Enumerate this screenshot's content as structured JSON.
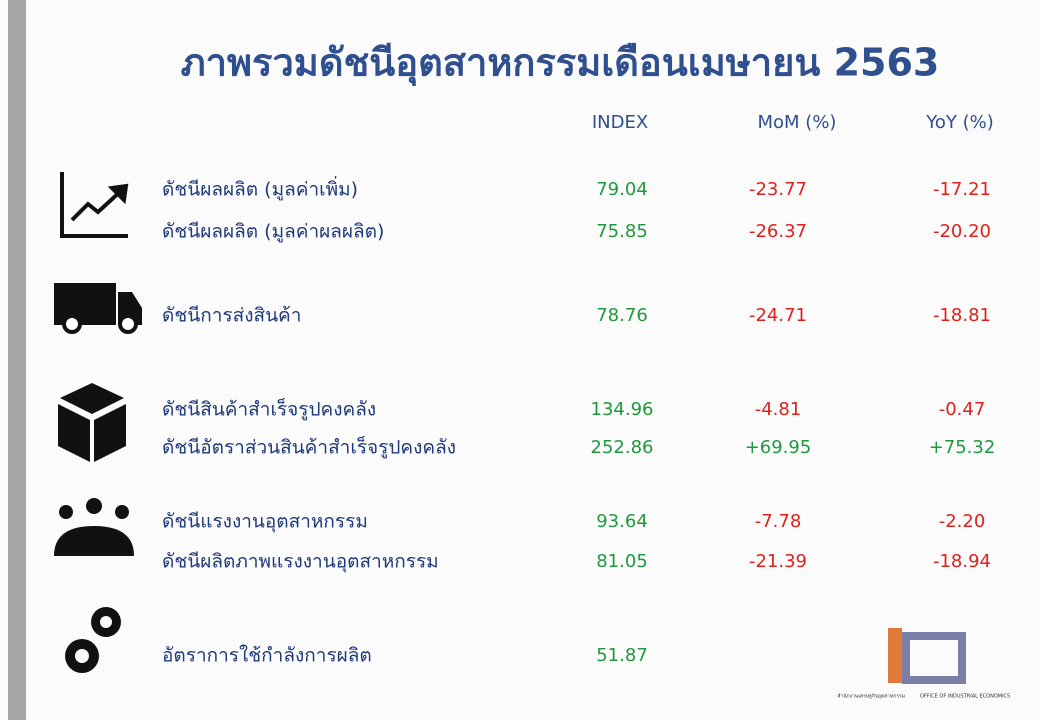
{
  "header": {
    "title": "ภาพรวมดัชนีอุตสาหกรรมเดือนเมษายน  2563"
  },
  "table": {
    "columns": [
      "INDEX",
      "MoM  (%)",
      "YoY  (%)"
    ],
    "rows": [
      {
        "label": "ดัชนีผลผลิต  (มูลค่าเพิ่ม)",
        "index": "79.04",
        "mom": "-23.77",
        "yoy": "-17.21"
      },
      {
        "label": "ดัชนีผลผลิต  (มูลค่าผลผลิต)",
        "index": "75.85",
        "mom": "-26.37",
        "yoy": "-20.20"
      },
      {
        "label": "ดัชนีการส่งสินค้า",
        "index": "78.76",
        "mom": "-24.71",
        "yoy": "-18.81"
      },
      {
        "label": "ดัชนีสินค้าสำเร็จรูปคงคลัง",
        "index": "134.96",
        "mom": "-4.81",
        "yoy": "-0.47"
      },
      {
        "label": "ดัชนีอัตราส่วนสินค้าสำเร็จรูปคงคลัง",
        "index": "252.86",
        "mom": "+69.95",
        "yoy": "+75.32"
      },
      {
        "label": "ดัชนีแรงงานอุตสาหกรรม",
        "index": "93.64",
        "mom": "-7.78",
        "yoy": "-2.20"
      },
      {
        "label": "ดัชนีผลิตภาพแรงงานอุตสาหกรรม",
        "index": "81.05",
        "mom": "-21.39",
        "yoy": "-18.94"
      },
      {
        "label": "อัตราการใช้กำลังการผลิต",
        "index": "51.87"
      }
    ]
  },
  "logo": {
    "thai": "สำนักงานเศรษฐกิจอุตสาหกรรม",
    "english": "OFFICE OF INDUSTRIAL ECONOMICS"
  }
}
